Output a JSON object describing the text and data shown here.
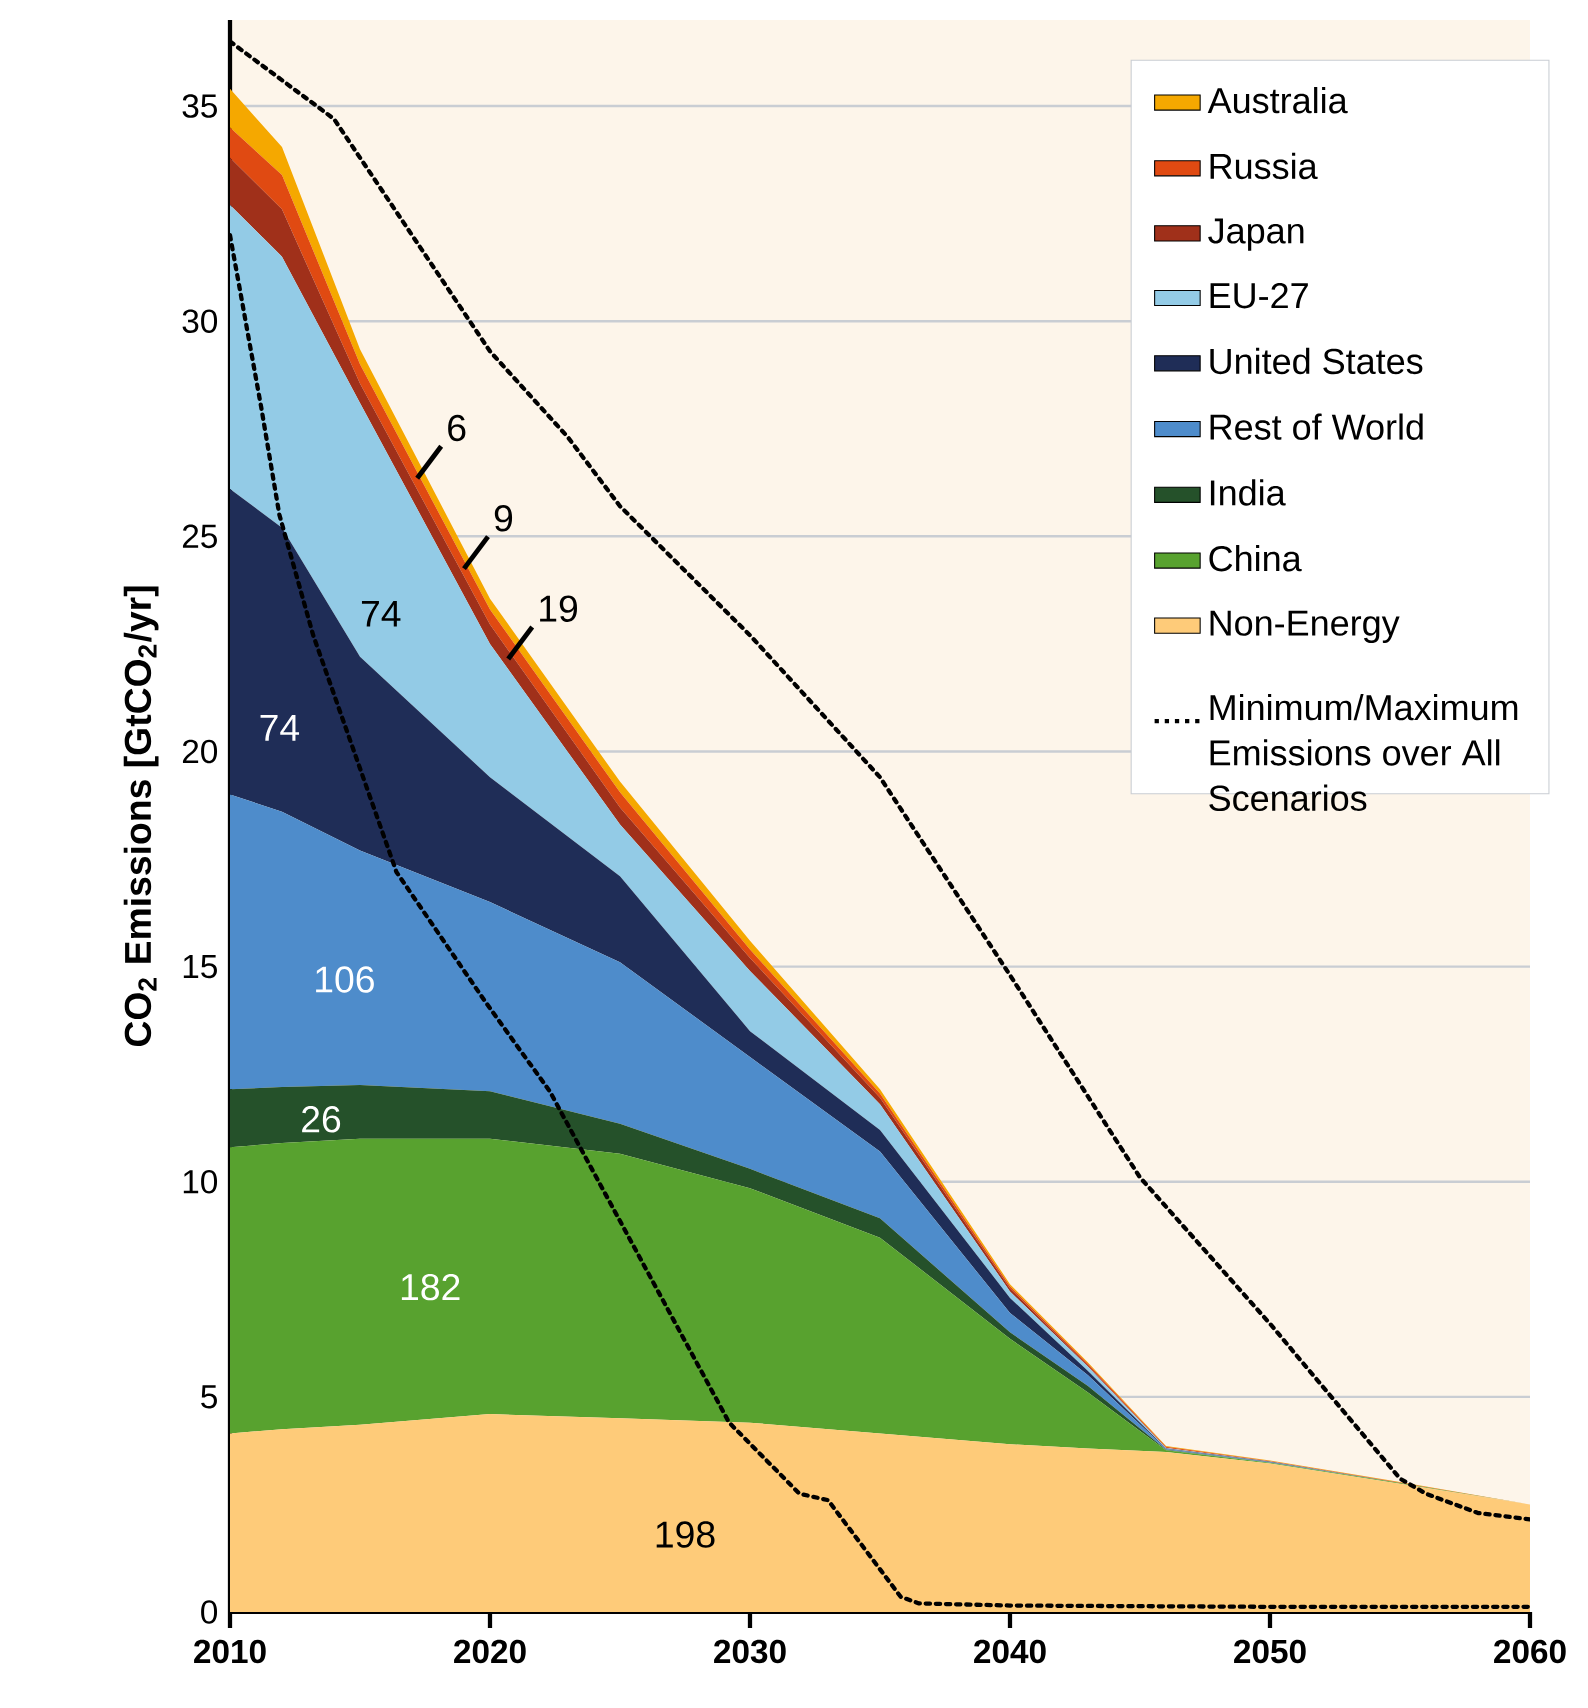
{
  "chart_data": {
    "type": "area",
    "stacked": true,
    "ylabel": "CO$_{2}$ Emissions [GtCO$_{2}$/yr]",
    "x": [
      2010,
      2012,
      2015,
      2020,
      2025,
      2030,
      2035,
      2040,
      2043,
      2046,
      2050,
      2055,
      2060
    ],
    "series": [
      {
        "name": "Non-Energy",
        "color": "#fecb79",
        "values": [
          4.15,
          4.25,
          4.35,
          4.6,
          4.5,
          4.4,
          4.15,
          3.9,
          3.8,
          3.72,
          3.45,
          2.98,
          2.5
        ]
      },
      {
        "name": "China",
        "color": "#58a22f",
        "values": [
          6.65,
          6.65,
          6.65,
          6.4,
          6.15,
          5.45,
          4.55,
          2.45,
          1.3,
          0.04,
          0.02,
          0.02,
          0
        ]
      },
      {
        "name": "India",
        "color": "#25512a",
        "values": [
          1.35,
          1.3,
          1.25,
          1.1,
          0.7,
          0.45,
          0.45,
          0.15,
          0.15,
          0.01,
          0,
          0,
          0
        ]
      },
      {
        "name": "Rest of World",
        "color": "#4e8ccb",
        "values": [
          6.85,
          6.4,
          5.45,
          4.4,
          3.75,
          2.6,
          1.55,
          0.45,
          0.25,
          0.02,
          0.01,
          0,
          0
        ]
      },
      {
        "name": "United States",
        "color": "#1f2d57",
        "values": [
          7.1,
          6.6,
          4.5,
          2.9,
          2.0,
          0.6,
          0.5,
          0.35,
          0.1,
          0.01,
          0.01,
          0,
          0
        ]
      },
      {
        "name": "EU-27",
        "color": "#93cbe6",
        "values": [
          6.6,
          6.3,
          5.9,
          3.1,
          1.2,
          1.4,
          0.6,
          0.15,
          0.1,
          0.01,
          0.01,
          0,
          0
        ]
      },
      {
        "name": "Japan",
        "color": "#a0301a",
        "values": [
          1.1,
          1.1,
          0.45,
          0.45,
          0.4,
          0.3,
          0.15,
          0.07,
          0.03,
          0.01,
          0,
          0,
          0
        ]
      },
      {
        "name": "Russia",
        "color": "#e04a12",
        "values": [
          0.7,
          0.8,
          0.45,
          0.35,
          0.35,
          0.2,
          0.1,
          0.05,
          0.04,
          0.02,
          0.01,
          0.01,
          0
        ]
      },
      {
        "name": "Australia",
        "color": "#f5a800",
        "values": [
          0.9,
          0.65,
          0.35,
          0.25,
          0.25,
          0.2,
          0.1,
          0.05,
          0.03,
          0.02,
          0.01,
          0.01,
          0
        ]
      },
      {
        "name": "Minimum/Maximum Emissions over All Scenarios",
        "type": "line",
        "line_style": "dotted",
        "color": "#000000",
        "x": [
          2010,
          2014,
          2020,
          2023,
          2025,
          2030,
          2035,
          2040,
          2045,
          2050,
          2055,
          2056,
          2058,
          2060
        ],
        "values": [
          36.5,
          34.7,
          29.3,
          27.3,
          25.7,
          22.7,
          19.4,
          14.8,
          10.1,
          6.7,
          3.1,
          2.75,
          2.3,
          2.15
        ]
      },
      {
        "type": "line",
        "line_style": "dotted",
        "color": "#000000",
        "x": [
          2010,
          2011.2,
          2011.9,
          2013.2,
          2016.4,
          2019.8,
          2022.3,
          2029.2,
          2031.9,
          2033,
          2035.8,
          2036.5,
          2040,
          2050,
          2060
        ],
        "values": [
          32.0,
          28.0,
          25.5,
          22.7,
          17.2,
          14.2,
          12.1,
          4.4,
          2.75,
          2.6,
          0.35,
          0.2,
          0.15,
          0.12,
          0.12
        ]
      }
    ],
    "xlim": [
      2010,
      2060
    ],
    "ylim": [
      0,
      37
    ],
    "xticks": [
      2010,
      2020,
      2030,
      2040,
      2050,
      2060
    ],
    "yticks": [
      0,
      5,
      10,
      15,
      20,
      25,
      30,
      35
    ],
    "grid": "y",
    "legend": "top right",
    "annotations": [
      {
        "text": "6",
        "x": 2017.2,
        "y": 26.35
      },
      {
        "text": "9",
        "x": 2019.0,
        "y": 24.25
      },
      {
        "text": "19",
        "x": 2020.7,
        "y": 22.15
      },
      "74",
      "74",
      "106",
      "26",
      "182",
      "198"
    ]
  }
}
